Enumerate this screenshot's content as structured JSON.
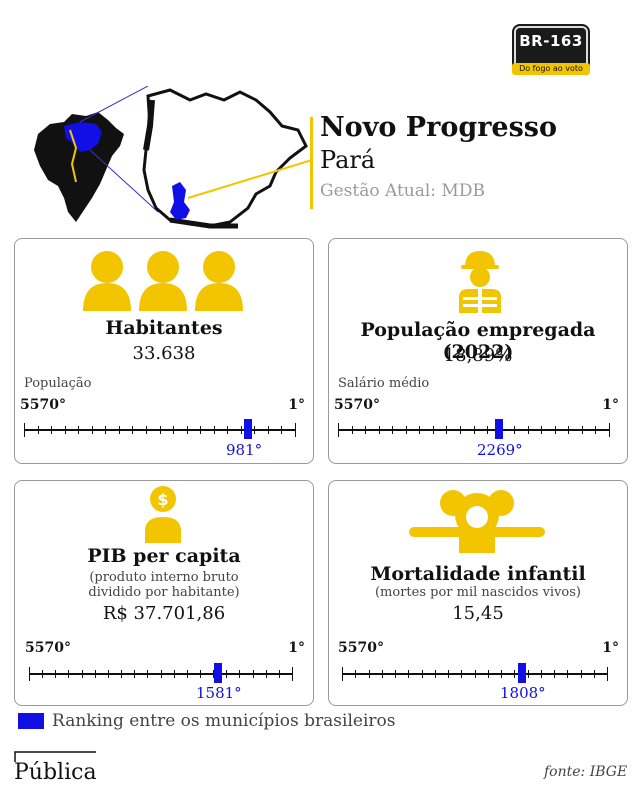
{
  "logo": {
    "plate": "BR-163",
    "tagline": "Do fogo ao voto"
  },
  "header": {
    "city": "Novo Progresso",
    "state": "Pará",
    "gestao": "Gestão Atual: MDB"
  },
  "colors": {
    "accent": "#f2c500",
    "rank_blue": "#1010e6",
    "text": "#111111",
    "muted": "#9a9a9a"
  },
  "cards": [
    {
      "icon": "people-icon",
      "title": "Habitantes",
      "value": "33.638",
      "ranking_label": "População",
      "scale_left": "5570°",
      "scale_right": "1°",
      "rank_text": "981°",
      "rank": 981
    },
    {
      "icon": "worker-icon",
      "title": "População empregada (2022)",
      "value": "18,89%",
      "ranking_label": "Salário médio",
      "scale_left": "5570°",
      "scale_right": "1°",
      "rank_text": "2269°",
      "rank": 2269
    },
    {
      "icon": "money-person-icon",
      "title": "PIB per capita",
      "subtitle_1": "(produto interno bruto",
      "subtitle_2": "dividido por habitante)",
      "value": "R$ 37.701,86",
      "scale_left": "5570°",
      "scale_right": "1°",
      "rank_text": "1581°",
      "rank": 1581
    },
    {
      "icon": "baby-icon",
      "title": "Mortalidade infantil",
      "subtitle_1": "(mortes por mil nascidos vivos)",
      "value": "15,45",
      "scale_left": "5570°",
      "scale_right": "1°",
      "rank_text": "1808°",
      "rank": 1808
    }
  ],
  "total_municipios": 5570,
  "legend": "Ranking entre os municípios brasileiros",
  "footer": {
    "brand": "Pública",
    "source": "fonte: IBGE"
  }
}
